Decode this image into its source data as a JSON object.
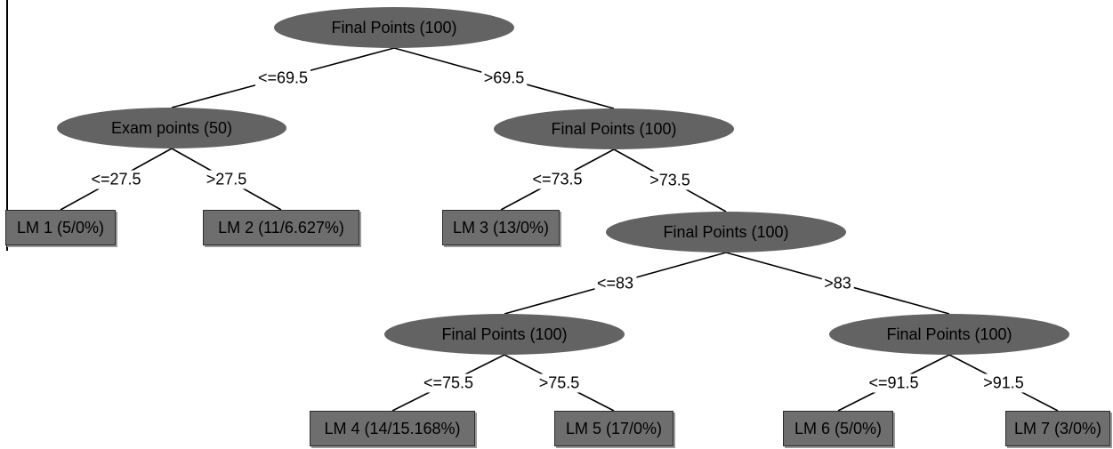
{
  "tree": {
    "colors": {
      "split_fill": "#636363",
      "leaf_fill": "#6e6e6e",
      "edge": "#000000",
      "text": "#000000"
    },
    "nodes": [
      {
        "id": "n0",
        "kind": "split",
        "label": "Final Points (100)"
      },
      {
        "id": "n1",
        "kind": "split",
        "label": "Exam points (50)"
      },
      {
        "id": "n2",
        "kind": "split",
        "label": "Final Points (100)"
      },
      {
        "id": "lm1",
        "kind": "leaf",
        "label": "LM 1 (5/0%)"
      },
      {
        "id": "lm2",
        "kind": "leaf",
        "label": "LM 2 (11/6.627%)"
      },
      {
        "id": "lm3",
        "kind": "leaf",
        "label": "LM 3 (13/0%)"
      },
      {
        "id": "n3",
        "kind": "split",
        "label": "Final Points (100)"
      },
      {
        "id": "n4",
        "kind": "split",
        "label": "Final Points (100)"
      },
      {
        "id": "n5",
        "kind": "split",
        "label": "Final Points (100)"
      },
      {
        "id": "lm4",
        "kind": "leaf",
        "label": "LM 4 (14/15.168%)"
      },
      {
        "id": "lm5",
        "kind": "leaf",
        "label": "LM 5 (17/0%)"
      },
      {
        "id": "lm6",
        "kind": "leaf",
        "label": "LM 6 (5/0%)"
      },
      {
        "id": "lm7",
        "kind": "leaf",
        "label": "LM 7 (3/0%)"
      }
    ],
    "edges": [
      {
        "from": "n0",
        "to": "n1",
        "label": "<=69.5"
      },
      {
        "from": "n0",
        "to": "n2",
        "label": ">69.5"
      },
      {
        "from": "n1",
        "to": "lm1",
        "label": "<=27.5"
      },
      {
        "from": "n1",
        "to": "lm2",
        "label": ">27.5"
      },
      {
        "from": "n2",
        "to": "lm3",
        "label": "<=73.5"
      },
      {
        "from": "n2",
        "to": "n3",
        "label": ">73.5"
      },
      {
        "from": "n3",
        "to": "n4",
        "label": "<=83"
      },
      {
        "from": "n3",
        "to": "n5",
        "label": ">83"
      },
      {
        "from": "n4",
        "to": "lm4",
        "label": "<=75.5"
      },
      {
        "from": "n4",
        "to": "lm5",
        "label": ">75.5"
      },
      {
        "from": "n5",
        "to": "lm6",
        "label": "<=91.5"
      },
      {
        "from": "n5",
        "to": "lm7",
        "label": ">91.5"
      }
    ]
  }
}
